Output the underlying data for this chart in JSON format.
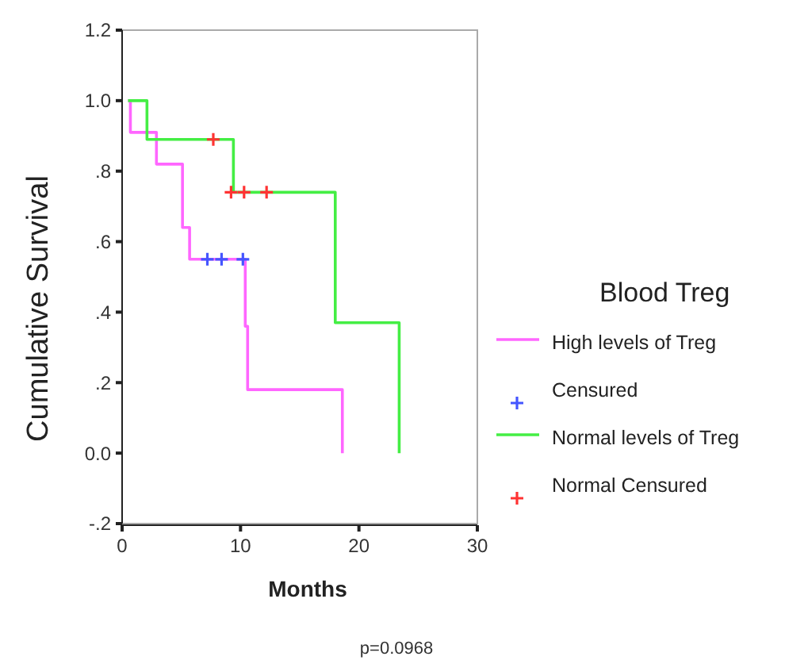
{
  "chart_data": {
    "type": "step",
    "xlabel": "Months",
    "ylabel": "Cumulative Survival",
    "legend_title": "Blood Treg",
    "legend": "right",
    "xlim": [
      0,
      30
    ],
    "xticks": [
      0,
      10,
      20,
      30
    ],
    "ylim": [
      -0.2,
      1.2
    ],
    "yticks": [
      {
        "value": -0.2,
        "label": "-.2"
      },
      {
        "value": 0,
        "label": "0.0"
      },
      {
        "value": 0.2,
        "label": ".2"
      },
      {
        "value": 0.4,
        "label": ".4"
      },
      {
        "value": 0.6,
        "label": ".6"
      },
      {
        "value": 0.8,
        "label": ".8"
      },
      {
        "value": 1,
        "label": "1.0"
      },
      {
        "value": 1.2,
        "label": "1.2"
      }
    ],
    "grid": false,
    "series": [
      {
        "name": "High levels of Treg",
        "color": "#ff66ff",
        "x": [
          0.5,
          0.7,
          2.9,
          5.1,
          5.7,
          10.4,
          10.6,
          18.6
        ],
        "values": [
          1.0,
          0.91,
          0.82,
          0.64,
          0.55,
          0.36,
          0.18,
          0
        ]
      },
      {
        "name": "Censured",
        "type": "scatter",
        "marker": "cross",
        "color": "#4455ff",
        "x": [
          7.2,
          8.4,
          10.2
        ],
        "values": [
          0.55,
          0.55,
          0.55
        ]
      },
      {
        "name": "Normal levels of Treg",
        "color": "#44ee44",
        "x": [
          0.5,
          2.1,
          9.4,
          18.0,
          23.4
        ],
        "values": [
          1.0,
          0.89,
          0.74,
          0.37,
          0
        ]
      },
      {
        "name": "Normal Censured",
        "type": "scatter",
        "marker": "cross",
        "color": "#ff3333",
        "x": [
          7.7,
          9.2,
          10.3,
          12.2
        ],
        "values": [
          0.89,
          0.74,
          0.74,
          0.74
        ]
      }
    ],
    "annotations": [
      "p=0.0968"
    ]
  }
}
